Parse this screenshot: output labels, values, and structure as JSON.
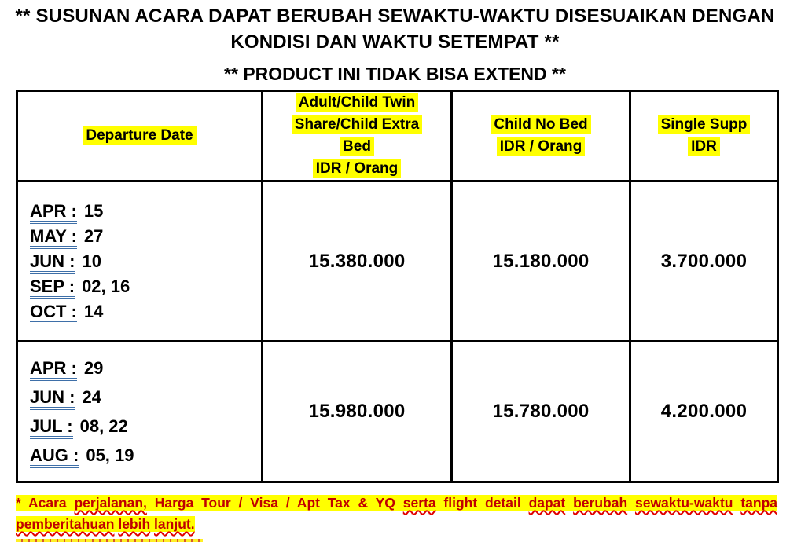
{
  "header": {
    "title_line1": "** SUSUNAN ACARA DAPAT BERUBAH SEWAKTU-WAKTU DISESUAIKAN DENGAN",
    "title_line2": "KONDISI DAN WAKTU SETEMPAT **",
    "subtitle": "** PRODUCT INI TIDAK BISA EXTEND **"
  },
  "colors": {
    "highlight_yellow": "#FFFF00",
    "footer_red": "#C00000",
    "date_underline_blue": "#3E6FA8",
    "table_border_black": "#000000"
  },
  "table": {
    "columns": [
      {
        "lines": [
          "Departure Date"
        ]
      },
      {
        "lines": [
          "Adult/Child Twin Share/Child Extra Bed",
          "IDR / Orang"
        ]
      },
      {
        "lines": [
          "Child No Bed",
          "IDR / Orang"
        ]
      },
      {
        "lines": [
          "Single Supp",
          "IDR"
        ]
      }
    ],
    "rows": [
      {
        "departure_dates": [
          {
            "month": "APR :",
            "days": "15"
          },
          {
            "month": "MAY :",
            "days": "27"
          },
          {
            "month": "JUN :",
            "days": "10"
          },
          {
            "month": "SEP :",
            "days": "02, 16"
          },
          {
            "month": "OCT :",
            "days": "14"
          }
        ],
        "adult_child_twin_share": "15.380.000",
        "child_no_bed": "15.180.000",
        "single_supp": "3.700.000"
      },
      {
        "departure_dates": [
          {
            "month": "APR :",
            "days": "29"
          },
          {
            "month": "JUN :",
            "days": "24"
          },
          {
            "month": "JUL :",
            "days": "08, 22"
          },
          {
            "month": "AUG :",
            "days": "05, 19"
          }
        ],
        "adult_child_twin_share": "15.980.000",
        "child_no_bed": "15.780.000",
        "single_supp": "4.200.000"
      }
    ]
  },
  "footer": {
    "segments": [
      {
        "text": "* Acara ",
        "misspelled": false
      },
      {
        "text": "perjalanan,",
        "misspelled": true
      },
      {
        "text": " Harga Tour / Visa / Apt Tax & YQ ",
        "misspelled": false
      },
      {
        "text": "serta",
        "misspelled": true
      },
      {
        "text": " flight detail ",
        "misspelled": false
      },
      {
        "text": "dapat",
        "misspelled": true
      },
      {
        "text": " ",
        "misspelled": false
      },
      {
        "text": "berubah",
        "misspelled": true
      },
      {
        "text": " ",
        "misspelled": false
      },
      {
        "text": "sewaktu-waktu",
        "misspelled": true
      },
      {
        "text": " ",
        "misspelled": false
      },
      {
        "text": "tanpa",
        "misspelled": true
      },
      {
        "text": " ",
        "misspelled": false
      },
      {
        "text": "pemberitahuan",
        "misspelled": true
      },
      {
        "text": " ",
        "misspelled": false
      },
      {
        "text": "lebih",
        "misspelled": true
      },
      {
        "text": " ",
        "misspelled": false
      },
      {
        "text": "lanjut.",
        "misspelled": true
      }
    ]
  }
}
